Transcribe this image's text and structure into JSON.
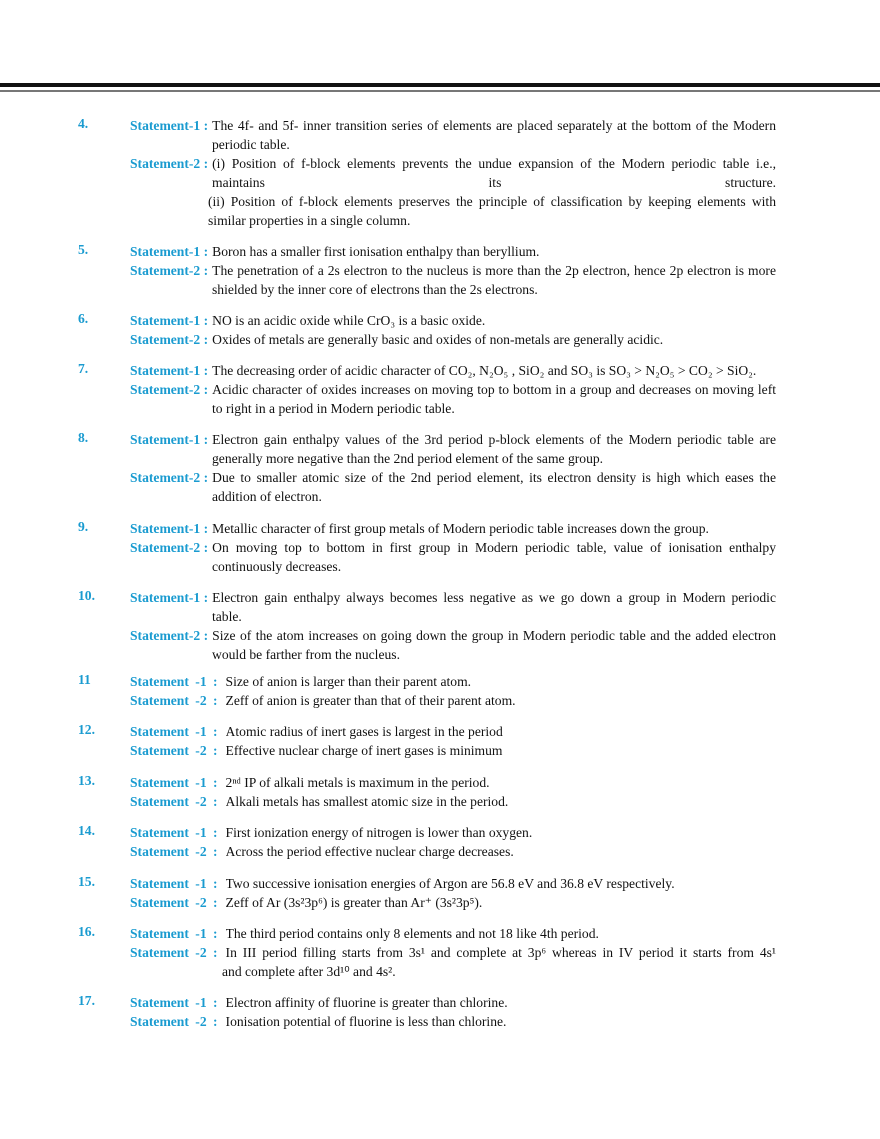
{
  "colors": {
    "accent": "#1a9bd0",
    "text": "#111111"
  },
  "items": [
    {
      "num": "4.",
      "statements": [
        {
          "label": "Statement-1 :",
          "lines": [
            "The 4f- and 5f- inner transition series of elements are placed separately at the bottom of the Modern",
            "periodic table."
          ]
        },
        {
          "label": "Statement-2 :",
          "lines": [
            "(i) Position of f-block elements prevents the undue expansion of the Modern periodic table i.e.,",
            "maintains its structure.",
            "(ii) Position of f-block elements preserves the principle of classification by keeping elements with",
            "similar properties in a single column."
          ]
        }
      ]
    },
    {
      "num": "5.",
      "statements": [
        {
          "label": "Statement-1 :",
          "lines": [
            "Boron has a smaller first ionisation enthalpy than beryllium."
          ]
        },
        {
          "label": "Statement-2 :",
          "lines": [
            "The penetration of a 2s electron to the nucleus is more than the 2p electron, hence 2p electron is more",
            "shielded by the inner core of electrons than the 2s electrons."
          ]
        }
      ]
    },
    {
      "num": "6.",
      "statements": [
        {
          "label": "Statement-1 :",
          "lines": [
            "NO is an acidic oxide while CrO₃ is a basic oxide."
          ]
        },
        {
          "label": "Statement-2 :",
          "lines": [
            "Oxides of metals are generally basic and oxides of non-metals are generally acidic."
          ]
        }
      ]
    },
    {
      "num": "7.",
      "statements": [
        {
          "label": "Statement-1 :",
          "lines": [
            "The decreasing order of acidic character of CO₂, N₂O₅ , SiO₂ and SO₃ is SO₃ > N₂O₅ > CO₂ > SiO₂."
          ]
        },
        {
          "label": "Statement-2 :",
          "lines": [
            "Acidic character of oxides increases on moving top to bottom in a group and decreases on moving left",
            "to right in a period in Modern periodic table."
          ]
        }
      ]
    },
    {
      "num": "8.",
      "statements": [
        {
          "label": "Statement-1 :",
          "lines": [
            "Electron gain enthalpy values of the 3rd period p-block elements of the Modern periodic table are",
            "generally more negative than the  2nd period element of the same group."
          ]
        },
        {
          "label": "Statement-2 :",
          "lines": [
            "Due to smaller atomic size of the 2nd period element, its electron density is high which eases the",
            "addition of electron."
          ]
        }
      ]
    },
    {
      "num": "9.",
      "statements": [
        {
          "label": "Statement-1 :",
          "lines": [
            "Metallic character of first group metals of Modern periodic table increases down the group."
          ]
        },
        {
          "label": "Statement-2 :",
          "lines": [
            "On moving top to bottom in first group in Modern periodic table, value of ionisation enthalpy",
            "continuously decreases."
          ]
        }
      ]
    },
    {
      "num": "10.",
      "statements": [
        {
          "label": "Statement-1 :",
          "lines": [
            "Electron gain enthalpy always becomes less negative as we go down a group in Modern periodic",
            "table."
          ]
        },
        {
          "label": "Statement-2 :",
          "lines": [
            "Size of the atom increases on going down the group in Modern periodic table and the added electron",
            "would be farther  from the nucleus."
          ]
        }
      ]
    },
    {
      "num": "11",
      "statements": [
        {
          "label": "Statement -1 :",
          "lines": [
            "Size of anion is larger than their parent atom."
          ]
        },
        {
          "label": "Statement -2 :",
          "lines": [
            "Zeff of anion is greater than that of their parent atom."
          ]
        }
      ]
    },
    {
      "num": "12.",
      "statements": [
        {
          "label": "Statement -1 :",
          "lines": [
            "Atomic radius of inert gases is largest in the period"
          ]
        },
        {
          "label": "Statement -2 :",
          "lines": [
            "Effective nuclear charge of inert gases is minimum"
          ]
        }
      ]
    },
    {
      "num": "13.",
      "statements": [
        {
          "label": "Statement -1 :",
          "lines": [
            "2ⁿᵈ IP of alkali metals is maximum in the period."
          ]
        },
        {
          "label": "Statement -2 :",
          "lines": [
            "Alkali metals has smallest atomic size in the period."
          ]
        }
      ]
    },
    {
      "num": "14.",
      "statements": [
        {
          "label": "Statement -1 :",
          "lines": [
            "First ionization energy of nitrogen is lower than oxygen."
          ]
        },
        {
          "label": "Statement -2 :",
          "lines": [
            "Across the period effective nuclear charge decreases."
          ]
        }
      ]
    },
    {
      "num": "15.",
      "statements": [
        {
          "label": "Statement -1 :",
          "lines": [
            "Two successive ionisation energies of Argon are 56.8 eV and 36.8 eV respectively."
          ]
        },
        {
          "label": "Statement -2 :",
          "lines": [
            "Zeff of Ar (3s²3p⁶) is greater than Ar⁺ (3s²3p⁵)."
          ]
        }
      ]
    },
    {
      "num": "16.",
      "statements": [
        {
          "label": "Statement -1 :",
          "lines": [
            "The third period contains only 8 elements and not 18 like 4th period."
          ]
        },
        {
          "label": "Statement -2 :",
          "lines": [
            "In III period filling starts from 3s¹ and complete at 3p⁶ whereas in IV period it starts  from 4s¹",
            "and complete after 3d¹⁰ and 4s²."
          ]
        }
      ]
    },
    {
      "num": "17.",
      "statements": [
        {
          "label": "Statement -1 :",
          "lines": [
            "Electron affinity of fluorine is greater than chlorine."
          ]
        },
        {
          "label": "Statement -2 :",
          "lines": [
            "Ionisation potential of fluorine is less than chlorine."
          ]
        }
      ]
    }
  ]
}
